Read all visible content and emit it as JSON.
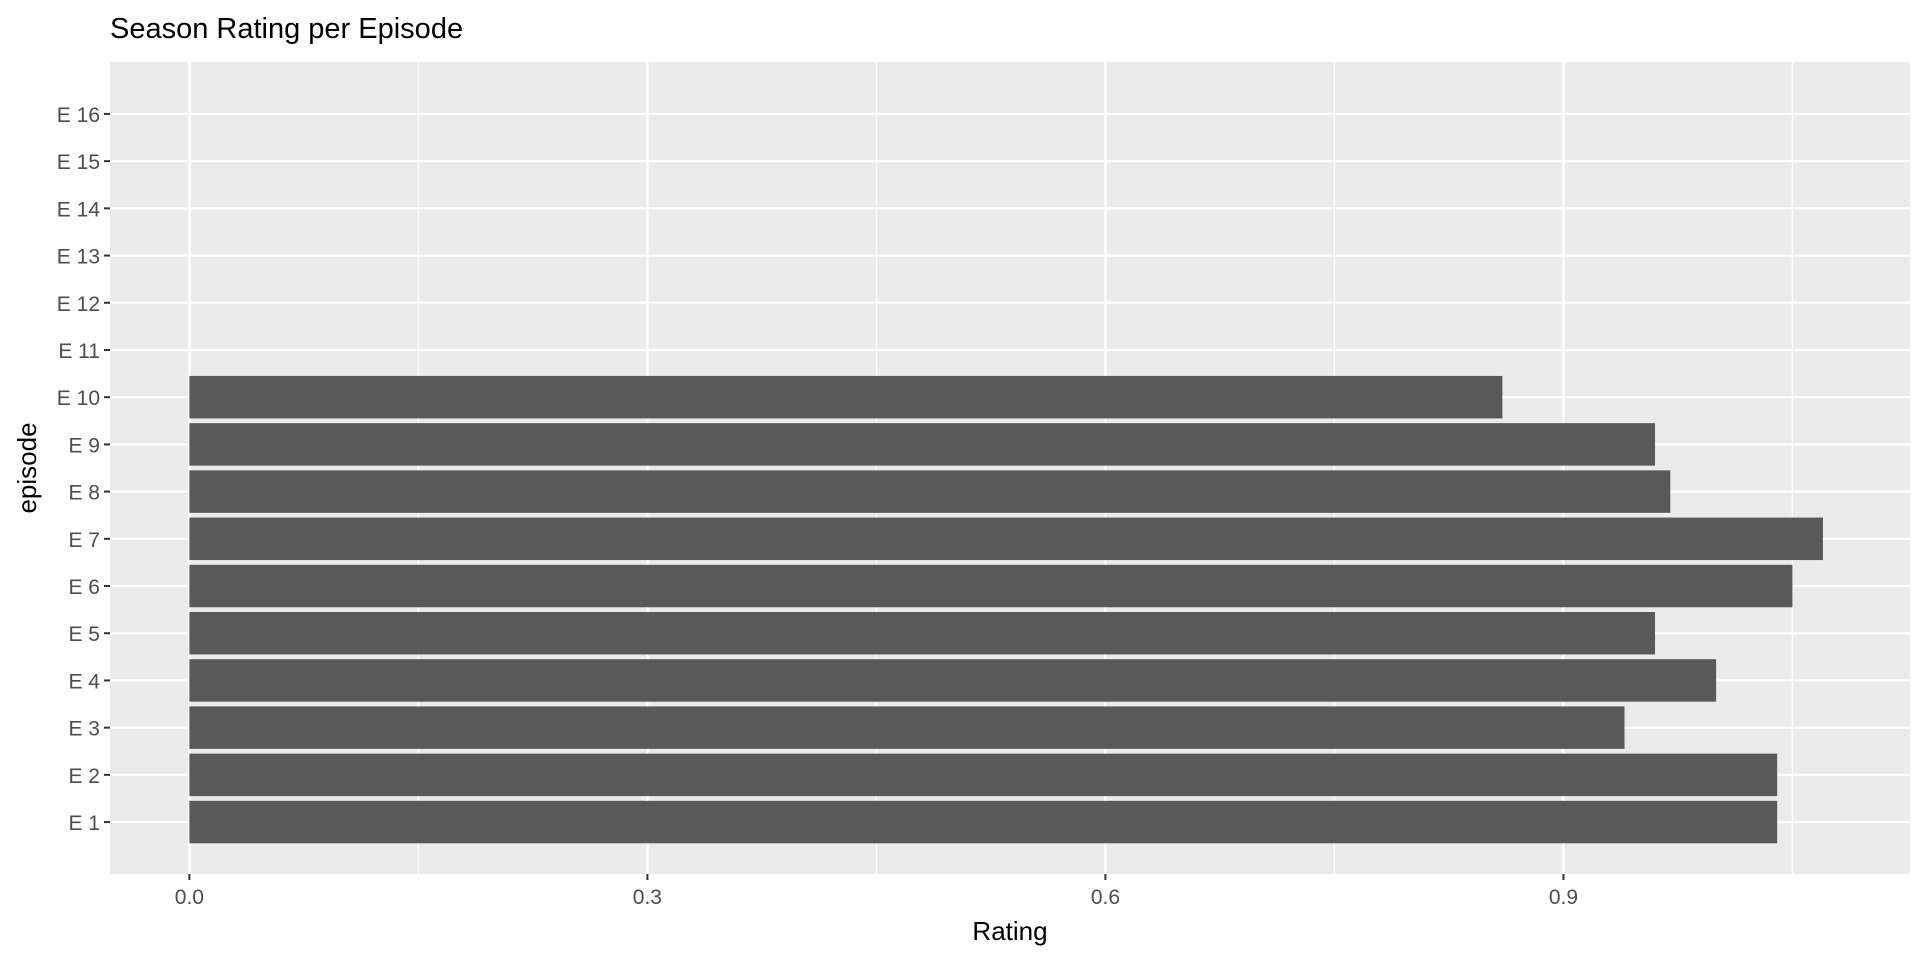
{
  "chart_data": {
    "type": "bar",
    "orientation": "horizontal",
    "title": "Season Rating per Episode",
    "xlabel": "Rating",
    "ylabel": "episode",
    "categories": [
      "E 1",
      "E 2",
      "E 3",
      "E 4",
      "E 5",
      "E 6",
      "E 7",
      "E 8",
      "E 9",
      "E 10",
      "E 11",
      "E 12",
      "E 13",
      "E 14",
      "E 15",
      "E 16"
    ],
    "values": [
      1.04,
      1.04,
      0.94,
      1.0,
      0.96,
      1.05,
      1.07,
      0.97,
      0.96,
      0.86,
      null,
      null,
      null,
      null,
      null,
      null
    ],
    "xlim": [
      -0.052,
      1.127
    ],
    "x_ticks": [
      0.0,
      0.3,
      0.6,
      0.9
    ],
    "x_tick_labels": [
      "0.0",
      "0.3",
      "0.6",
      "0.9"
    ],
    "grid": true,
    "colors": {
      "bar": "#595959",
      "panel": "#ebebeb",
      "grid_major": "#ffffff",
      "text_title": "#000000",
      "text_axis": "#4d4d4d",
      "text_label": "#000000",
      "tick": "#333333"
    }
  }
}
